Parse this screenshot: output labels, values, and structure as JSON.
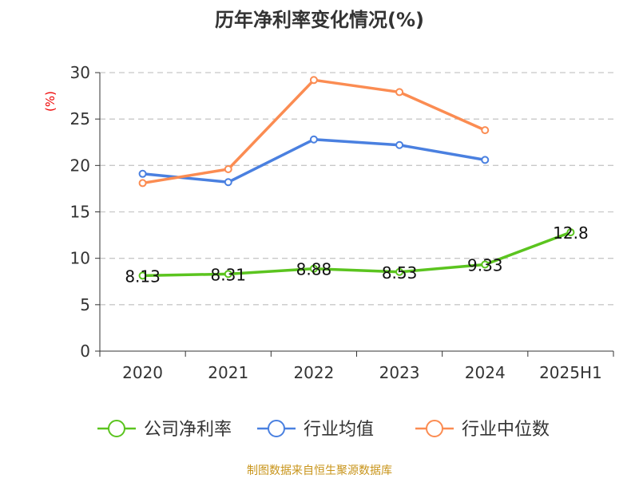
{
  "chart_data": {
    "type": "line",
    "title": "历年净利率变化情况(%)",
    "ylabel": "(%)",
    "xlabel": "",
    "categories": [
      "2020",
      "2021",
      "2022",
      "2023",
      "2024",
      "2025H1"
    ],
    "ylim": [
      0,
      30
    ],
    "yticks": [
      0,
      5,
      10,
      15,
      20,
      25,
      30
    ],
    "grid": true,
    "legend_position": "bottom",
    "series": [
      {
        "name": "公司净利率",
        "color": "#5bc41f",
        "values": [
          8.13,
          8.31,
          8.88,
          8.53,
          9.33,
          12.8
        ],
        "labels": [
          "8.13",
          "8.31",
          "8.88",
          "8.53",
          "9.33",
          "12.8"
        ]
      },
      {
        "name": "行业均值",
        "color": "#4a80e0",
        "values": [
          19.1,
          18.2,
          22.8,
          22.2,
          20.6,
          null
        ]
      },
      {
        "name": "行业中位数",
        "color": "#fb8c52",
        "values": [
          18.1,
          19.6,
          29.2,
          27.9,
          23.8,
          null
        ]
      }
    ]
  },
  "source": "制图数据来自恒生聚源数据库"
}
